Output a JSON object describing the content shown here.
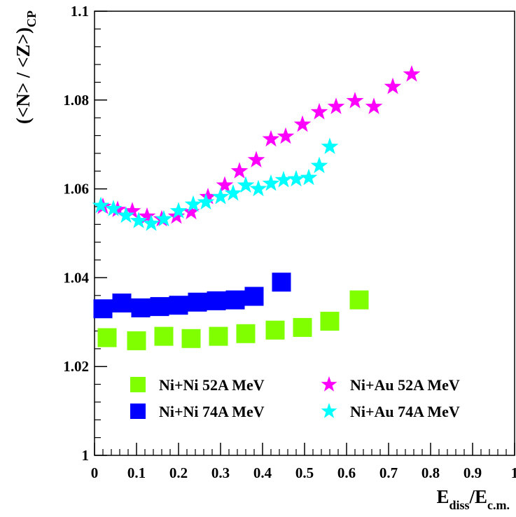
{
  "chart_data": {
    "type": "scatter",
    "xlim": [
      0,
      1
    ],
    "ylim": [
      1,
      1.1
    ],
    "x_ticks": [
      "0",
      "0.1",
      "0.2",
      "0.3",
      "0.4",
      "0.5",
      "0.6",
      "0.7",
      "0.8",
      "0.9",
      "1"
    ],
    "y_ticks": [
      "1",
      "1.02",
      "1.04",
      "1.06",
      "1.08",
      "1.1"
    ],
    "xlabel": {
      "main": "E",
      "sub1": "diss",
      "slash": "/E",
      "sub2": "c.m."
    },
    "ylabel": {
      "main": "(<N> / <Z>)",
      "sub": "CP"
    },
    "grid": false,
    "legend_position": "bottom",
    "series": [
      {
        "name": "Ni+Ni 52A MeV",
        "marker": "square",
        "color": "#80ff00",
        "x": [
          0.03,
          0.1,
          0.165,
          0.23,
          0.295,
          0.36,
          0.43,
          0.495,
          0.56,
          0.63
        ],
        "y": [
          1.0265,
          1.0258,
          1.0268,
          1.0263,
          1.0268,
          1.0274,
          1.0282,
          1.0288,
          1.0302,
          1.035
        ]
      },
      {
        "name": "Ni+Ni 74A MeV",
        "marker": "square",
        "color": "#0000ff",
        "x": [
          0.02,
          0.065,
          0.11,
          0.155,
          0.2,
          0.245,
          0.29,
          0.335,
          0.38,
          0.445
        ],
        "y": [
          1.033,
          1.0343,
          1.0332,
          1.0335,
          1.0338,
          1.0345,
          1.0348,
          1.035,
          1.0358,
          1.039
        ]
      },
      {
        "name": "Ni+Au 52A MeV",
        "marker": "star",
        "color": "#ff00ff",
        "x": [
          0.02,
          0.055,
          0.09,
          0.125,
          0.16,
          0.195,
          0.23,
          0.27,
          0.31,
          0.345,
          0.385,
          0.42,
          0.455,
          0.495,
          0.535,
          0.575,
          0.62,
          0.665,
          0.71,
          0.755
        ],
        "y": [
          1.056,
          1.0553,
          1.055,
          1.0538,
          1.0532,
          1.0538,
          1.0548,
          1.0582,
          1.0608,
          1.064,
          1.0665,
          1.0712,
          1.0718,
          1.0745,
          1.0773,
          1.0785,
          1.0798,
          1.0785,
          1.083,
          1.0858
        ]
      },
      {
        "name": "Ni+Au 74A MeV",
        "marker": "star",
        "color": "#00ffff",
        "x": [
          0.015,
          0.045,
          0.075,
          0.105,
          0.135,
          0.165,
          0.2,
          0.235,
          0.265,
          0.3,
          0.33,
          0.36,
          0.39,
          0.42,
          0.45,
          0.48,
          0.51,
          0.535,
          0.56
        ],
        "y": [
          1.0562,
          1.0555,
          1.054,
          1.0528,
          1.0522,
          1.0532,
          1.055,
          1.0565,
          1.057,
          1.0582,
          1.059,
          1.0608,
          1.06,
          1.0612,
          1.062,
          1.0622,
          1.0625,
          1.0652,
          1.0695
        ]
      }
    ]
  }
}
